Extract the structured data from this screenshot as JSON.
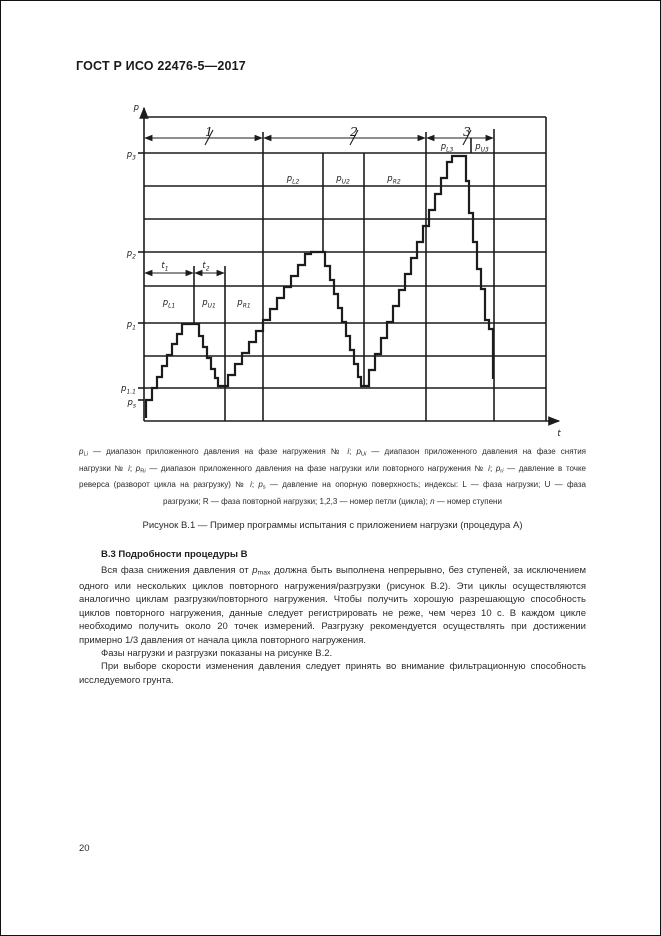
{
  "page": {
    "standard_code": "ГОСТ Р ИСО 22476-5—2017",
    "page_number": "20"
  },
  "figure": {
    "y_axis_label": "p",
    "x_axis_label": "t",
    "y_ticks": [
      {
        "main": "p",
        "sub": "3"
      },
      {
        "main": "p",
        "sub": "2"
      },
      {
        "main": "p",
        "sub": "1"
      },
      {
        "main": "p",
        "sub": "1.1"
      },
      {
        "main": "p",
        "sub": "s"
      }
    ],
    "loop_numbers": [
      "1",
      "2",
      "3"
    ],
    "time_intervals": [
      {
        "main": "t",
        "sub": "1"
      },
      {
        "main": "t",
        "sub": "2"
      }
    ],
    "phase_labels_row_bottom": [
      {
        "main": "p",
        "sub": "L1"
      },
      {
        "main": "p",
        "sub": "U1"
      },
      {
        "main": "p",
        "sub": "R1"
      }
    ],
    "phase_labels_row_middle": [
      {
        "main": "p",
        "sub": "L2"
      },
      {
        "main": "p",
        "sub": "U2"
      },
      {
        "main": "p",
        "sub": "R2"
      }
    ],
    "phase_labels_row_top": [
      {
        "main": "p",
        "sub": "L3"
      },
      {
        "main": "p",
        "sub": "U3"
      }
    ]
  },
  "legend": {
    "lines": [
      [
        {
          "t": "p",
          "s": "i"
        },
        {
          "t": "L",
          "s": "sub"
        },
        {
          "t": "i",
          "s": "isub"
        },
        {
          "t": " — диапазон приложенного давления на фазе нагружения № "
        },
        {
          "t": "i",
          "s": "i"
        },
        {
          "t": "; "
        },
        {
          "t": "p",
          "s": "i"
        },
        {
          "t": "U",
          "s": "sub"
        },
        {
          "t": "i",
          "s": "isub"
        },
        {
          "t": " — диапазон приложенного давления на фазе снятия"
        }
      ],
      [
        {
          "t": "нагрузки № "
        },
        {
          "t": "i",
          "s": "i"
        },
        {
          "t": "; "
        },
        {
          "t": "p",
          "s": "i"
        },
        {
          "t": "R",
          "s": "sub"
        },
        {
          "t": "i",
          "s": "isub"
        },
        {
          "t": " — диапазон приложенного давления на фазе нагрузки или повторного нагружения № "
        },
        {
          "t": "i",
          "s": "i"
        },
        {
          "t": "; "
        },
        {
          "t": "p",
          "s": "i"
        },
        {
          "t": "r",
          "s": "sub"
        },
        {
          "t": "i",
          "s": "isub"
        },
        {
          "t": " — давление в точке"
        }
      ],
      [
        {
          "t": "реверса (разворот цикла на разгрузку) № "
        },
        {
          "t": "i",
          "s": "i"
        },
        {
          "t": "; "
        },
        {
          "t": "p",
          "s": "i"
        },
        {
          "t": "s",
          "s": "sub"
        },
        {
          "t": " — давление на опорную поверхность; индексы: L — фаза нагрузки; U — фаза"
        }
      ],
      [
        {
          "t": "разгрузки; R — фаза повторной нагрузки; 1,2,3 — номер петли (цикла); "
        },
        {
          "t": "n",
          "s": "i"
        },
        {
          "t": " — номер ступени"
        }
      ]
    ]
  },
  "figure_title": "Рисунок В.1 — Пример программы испытания с приложением нагрузки (процедура А)",
  "section": {
    "heading": "В.3 Подробности процедуры В",
    "paragraphs": [
      [
        {
          "t": "Вся фаза снижения давления от "
        },
        {
          "t": "p",
          "s": "i"
        },
        {
          "t": "max",
          "s": "sub"
        },
        {
          "t": " должна быть выполнена непрерывно, без ступеней, за исключением одного или нескольких циклов повторного нагружения/разгрузки (рисунок В.2). Эти циклы осуществляются аналогично циклам разгрузки/повторного нагружения. Чтобы получить хорошую разрешающую способность циклов повторного нагружения, данные следует регистрировать не реже, чем через 10 с. В каждом цикле необходимо получить около 20 точек измерений. Разгрузку рекомендуется осуществлять при достижении примерно 1/3 давления от начала цикла повторного нагружения."
        }
      ],
      [
        {
          "t": "Фазы нагрузки и разгрузки показаны на рисунке В.2."
        }
      ],
      [
        {
          "t": "При выборе скорости изменения давления следует принять во внимание фильтрационную способность исследуемого грунта."
        }
      ]
    ]
  }
}
